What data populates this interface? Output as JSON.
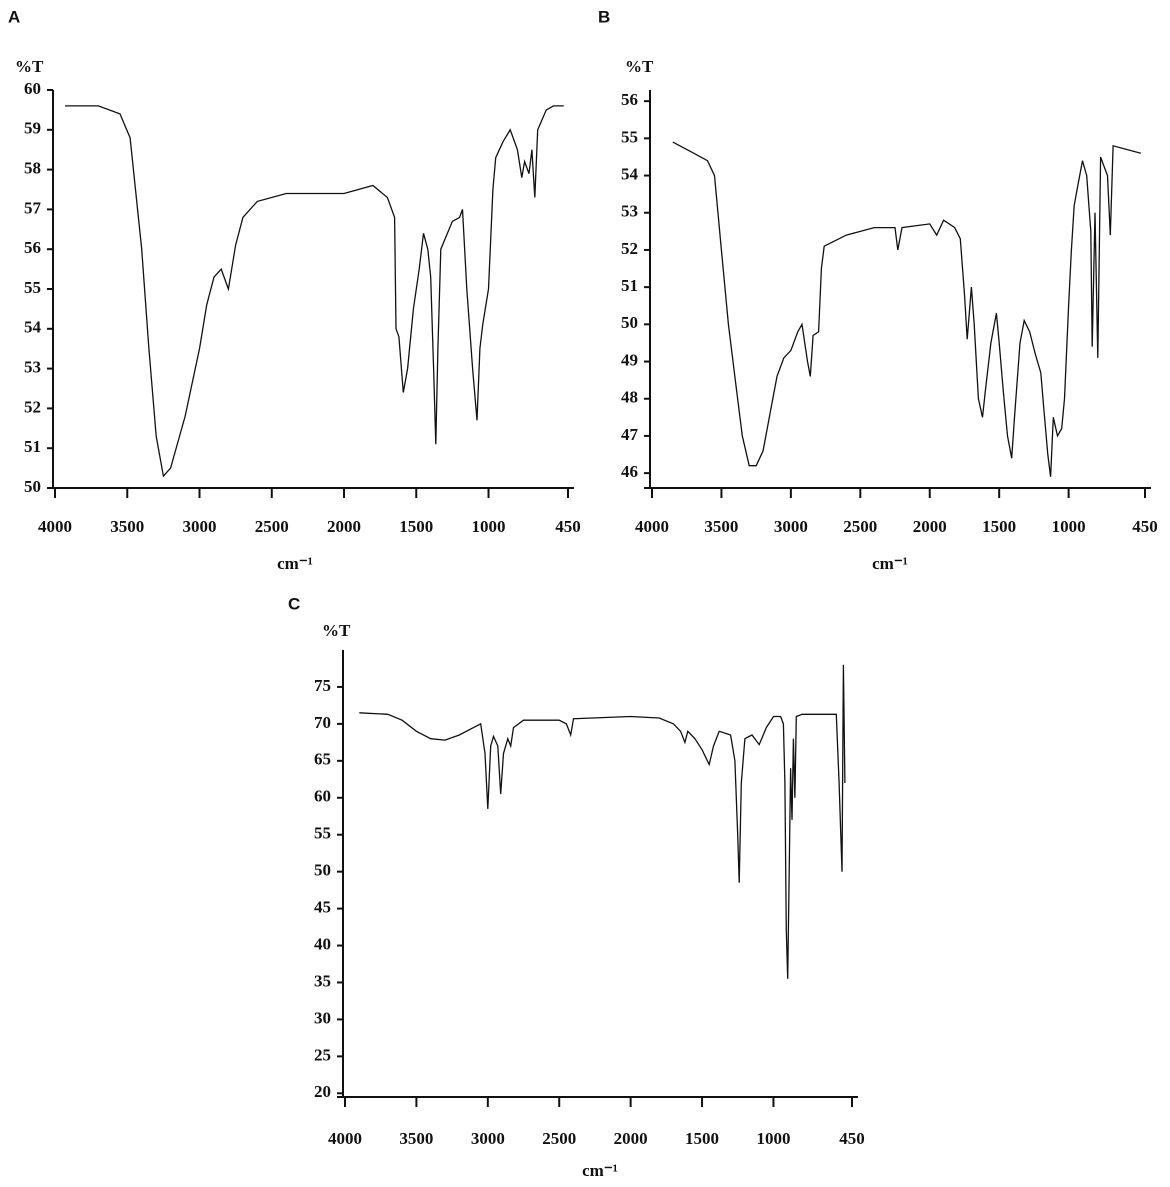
{
  "chart_data": [
    {
      "type": "line",
      "title": "A",
      "y_label": "%T",
      "x_label": "cm⁻¹",
      "color": "#111111",
      "xlim": [
        4000,
        450
      ],
      "xticks": [
        4000,
        3500,
        3000,
        2500,
        2000,
        1500,
        1000,
        450
      ],
      "ylim": [
        50,
        60
      ],
      "yticks": [
        50,
        51,
        52,
        53,
        54,
        55,
        56,
        57,
        58,
        59,
        60
      ],
      "x": [
        3930,
        3700,
        3550,
        3480,
        3400,
        3350,
        3300,
        3250,
        3200,
        3100,
        3000,
        2950,
        2900,
        2850,
        2800,
        2750,
        2700,
        2600,
        2400,
        2200,
        2000,
        1800,
        1700,
        1650,
        1640,
        1620,
        1590,
        1560,
        1520,
        1480,
        1450,
        1420,
        1400,
        1380,
        1365,
        1350,
        1330,
        1250,
        1200,
        1180,
        1150,
        1110,
        1080,
        1060,
        1040,
        1000,
        970,
        950,
        900,
        850,
        800,
        770,
        750,
        720,
        700,
        680,
        660,
        600,
        550,
        480
      ],
      "values": [
        59.6,
        59.6,
        59.4,
        58.8,
        56,
        53.5,
        51.3,
        50.3,
        50.5,
        51.8,
        53.5,
        54.6,
        55.3,
        55.5,
        55.0,
        56.1,
        56.8,
        57.2,
        57.4,
        57.4,
        57.4,
        57.6,
        57.3,
        56.8,
        54.0,
        53.8,
        52.4,
        53.0,
        54.5,
        55.5,
        56.4,
        56.0,
        55.3,
        53.0,
        51.1,
        53.5,
        56.0,
        56.7,
        56.8,
        57.0,
        55.0,
        53.0,
        51.7,
        53.5,
        54.1,
        55.0,
        57.5,
        58.3,
        58.7,
        59.0,
        58.5,
        57.8,
        58.2,
        57.9,
        58.5,
        57.3,
        59.0,
        59.5,
        59.6,
        59.6
      ]
    },
    {
      "type": "line",
      "title": "B",
      "y_label": "%T",
      "x_label": "cm⁻¹",
      "color": "#111111",
      "xlim": [
        4000,
        450
      ],
      "xticks": [
        4000,
        3500,
        3000,
        2500,
        2000,
        1500,
        1000,
        450
      ],
      "ylim": [
        45.6,
        56.3
      ],
      "yticks": [
        46,
        47,
        48,
        49,
        50,
        51,
        52,
        53,
        54,
        55,
        56
      ],
      "x": [
        3850,
        3700,
        3600,
        3550,
        3500,
        3450,
        3400,
        3350,
        3300,
        3250,
        3200,
        3150,
        3100,
        3050,
        3000,
        2950,
        2920,
        2880,
        2860,
        2840,
        2800,
        2780,
        2760,
        2600,
        2400,
        2250,
        2230,
        2200,
        2000,
        1950,
        1900,
        1820,
        1780,
        1750,
        1730,
        1700,
        1680,
        1650,
        1620,
        1600,
        1560,
        1520,
        1500,
        1470,
        1440,
        1410,
        1390,
        1350,
        1320,
        1280,
        1240,
        1200,
        1180,
        1150,
        1130,
        1110,
        1080,
        1050,
        1030,
        1000,
        980,
        960,
        930,
        900,
        870,
        840,
        830,
        810,
        790,
        770,
        750,
        720,
        700,
        680,
        480
      ],
      "values": [
        54.9,
        54.6,
        54.4,
        54.0,
        52,
        50,
        48.5,
        47,
        46.2,
        46.2,
        46.6,
        47.6,
        48.6,
        49.1,
        49.3,
        49.8,
        50.0,
        49.0,
        48.6,
        49.7,
        49.8,
        51.5,
        52.1,
        52.4,
        52.6,
        52.6,
        52.0,
        52.6,
        52.7,
        52.4,
        52.8,
        52.6,
        52.3,
        50.8,
        49.6,
        51.0,
        50.0,
        48.0,
        47.5,
        48.2,
        49.5,
        50.3,
        49.5,
        48.2,
        47.0,
        46.4,
        47.5,
        49.5,
        50.1,
        49.8,
        49.2,
        48.7,
        47.8,
        46.5,
        45.9,
        47.5,
        47.0,
        47.2,
        48.0,
        50.5,
        52.0,
        53.2,
        53.8,
        54.4,
        54.0,
        52.5,
        49.4,
        53.0,
        49.1,
        54.5,
        54.3,
        54.0,
        52.4,
        54.8,
        54.6
      ]
    },
    {
      "type": "line",
      "title": "C",
      "y_label": "%T",
      "x_label": "cm⁻¹",
      "color": "#111111",
      "xlim": [
        4000,
        450
      ],
      "xticks": [
        4000,
        3500,
        3000,
        2500,
        2000,
        1500,
        1000,
        450
      ],
      "ylim": [
        19.5,
        80
      ],
      "yticks": [
        20,
        25,
        30,
        35,
        40,
        45,
        50,
        55,
        60,
        65,
        70,
        75
      ],
      "x": [
        3900,
        3700,
        3600,
        3500,
        3400,
        3300,
        3200,
        3100,
        3050,
        3020,
        3000,
        2980,
        2960,
        2930,
        2910,
        2890,
        2860,
        2840,
        2820,
        2750,
        2500,
        2450,
        2420,
        2400,
        2000,
        1800,
        1700,
        1650,
        1620,
        1600,
        1550,
        1500,
        1450,
        1420,
        1380,
        1300,
        1270,
        1250,
        1240,
        1225,
        1200,
        1150,
        1100,
        1050,
        1000,
        950,
        930,
        920,
        910,
        900,
        890,
        880,
        870,
        860,
        850,
        840,
        800,
        560,
        540,
        520,
        510,
        500
      ],
      "values": [
        71.5,
        71.3,
        70.5,
        69,
        68,
        67.8,
        68.5,
        69.5,
        70,
        66,
        58.5,
        67,
        68.3,
        67,
        60.5,
        66,
        68,
        67,
        69.5,
        70.5,
        70.5,
        70,
        68.5,
        70.7,
        71,
        70.8,
        70,
        69,
        67.5,
        69,
        68,
        66.5,
        64.5,
        67,
        69,
        68.5,
        65,
        55,
        48.5,
        62,
        68,
        68.5,
        67.2,
        69.5,
        71,
        71,
        70,
        62,
        42,
        35.5,
        50,
        64,
        57,
        68,
        60,
        71,
        71.3,
        71.3,
        62,
        50,
        78,
        62
      ]
    }
  ]
}
